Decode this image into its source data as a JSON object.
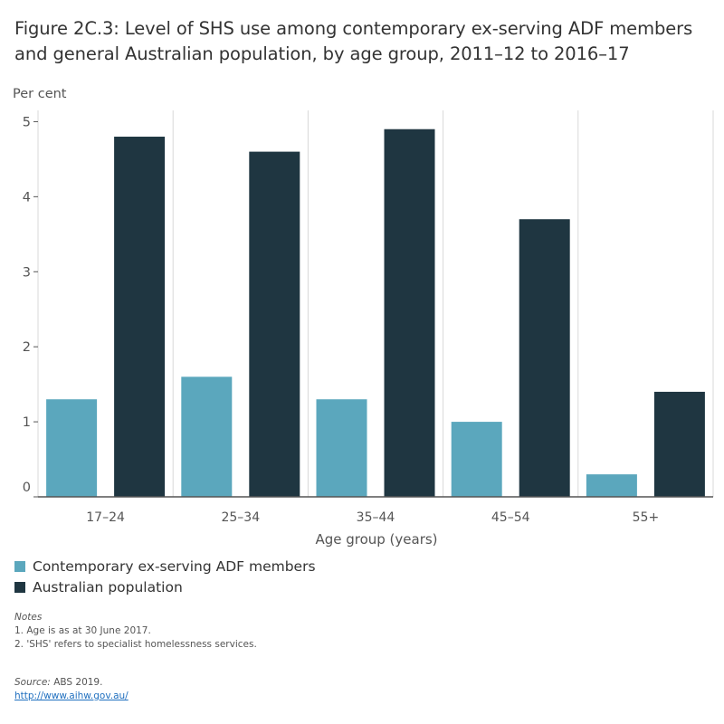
{
  "title": "Figure 2C.3: Level of SHS use among contemporary ex-serving ADF members and general Australian population, by age group, 2011–12 to 2016–17",
  "colors": {
    "series_1": "#5ba7bd",
    "series_2": "#1f3641",
    "grid": "#d9d9d9",
    "axis": "#555555"
  },
  "chart_data": {
    "type": "bar",
    "title": "",
    "ylabel": "Per cent",
    "xlabel": "Age group (years)",
    "categories": [
      "17–24",
      "25–34",
      "35–44",
      "45–54",
      "55+"
    ],
    "series": [
      {
        "name": "Contemporary ex-serving ADF members",
        "values": [
          1.3,
          1.6,
          1.3,
          1.0,
          0.3
        ]
      },
      {
        "name": "Australian population",
        "values": [
          4.8,
          4.6,
          4.9,
          3.7,
          1.4
        ]
      }
    ],
    "ylim": [
      0,
      5.15
    ],
    "yticks": [
      "0",
      "1",
      "2",
      "3",
      "4",
      "5"
    ],
    "grid": "vertical separators",
    "legend": "bottom-left"
  },
  "notes": {
    "heading": "Notes",
    "items": [
      "1. Age is as at 30 June 2017.",
      "2. 'SHS' refers to specialist homelessness services."
    ]
  },
  "source": {
    "label": "Source:",
    "text": "ABS 2019.",
    "link": "http://www.aihw.gov.au/"
  }
}
